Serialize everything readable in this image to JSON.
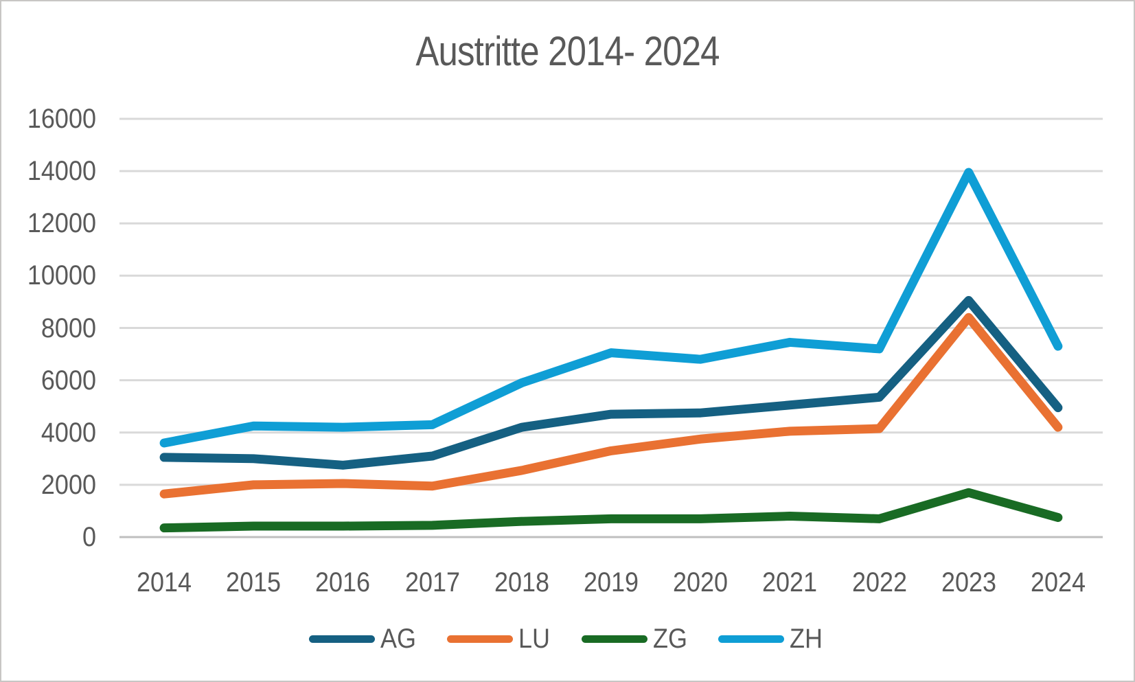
{
  "title": "Austritte 2014- 2024",
  "colors": {
    "text": "#595959",
    "gridline": "#D9D9D9",
    "axis_line": "#BFBFBF",
    "border": "#C8C6C4",
    "background": "#FFFFFF"
  },
  "chart_data": {
    "type": "line",
    "title": "Austritte 2014- 2024",
    "categories": [
      "2014",
      "2015",
      "2016",
      "2017",
      "2018",
      "2019",
      "2020",
      "2021",
      "2022",
      "2023",
      "2024"
    ],
    "series": [
      {
        "name": "AG",
        "color": "#156082",
        "values": [
          3050,
          3000,
          2750,
          3100,
          4200,
          4700,
          4750,
          5050,
          5350,
          9050,
          4950
        ]
      },
      {
        "name": "LU",
        "color": "#E97132",
        "values": [
          1650,
          2000,
          2050,
          1950,
          2550,
          3300,
          3750,
          4050,
          4150,
          8400,
          4200
        ]
      },
      {
        "name": "ZG",
        "color": "#196B24",
        "values": [
          350,
          420,
          420,
          450,
          600,
          700,
          700,
          800,
          700,
          1700,
          750
        ]
      },
      {
        "name": "ZH",
        "color": "#0F9ED5",
        "values": [
          3600,
          4250,
          4200,
          4300,
          5900,
          7050,
          6800,
          7450,
          7200,
          13950,
          7300
        ]
      }
    ],
    "xlabel": "",
    "ylabel": "",
    "ylim": [
      0,
      16000
    ],
    "ytick_step": 2000,
    "ytick_labels": [
      "0",
      "2000",
      "4000",
      "6000",
      "8000",
      "10000",
      "12000",
      "14000",
      "16000"
    ],
    "grid": true,
    "legend_position": "bottom",
    "line_width": 13
  }
}
